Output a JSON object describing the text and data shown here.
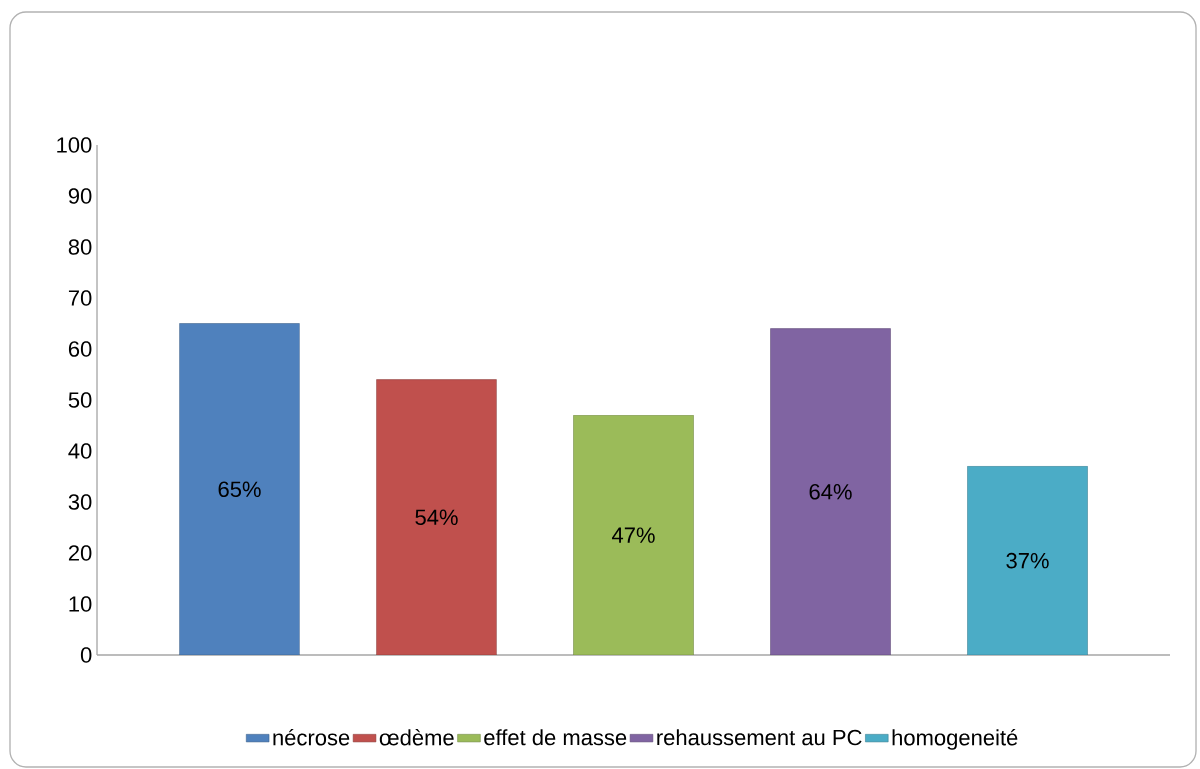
{
  "chart_data": {
    "type": "bar",
    "categories": [
      null
    ],
    "series": [
      {
        "name": "nécrose",
        "color": "#4f81bd",
        "values": [
          65
        ],
        "value_labels": [
          "65%"
        ]
      },
      {
        "name": "œdème",
        "color": "#c0504d",
        "values": [
          54
        ],
        "value_labels": [
          "54%"
        ]
      },
      {
        "name": "effet de masse",
        "color": "#9bbb59",
        "values": [
          47
        ],
        "value_labels": [
          "47%"
        ]
      },
      {
        "name": "rehaussement au PC",
        "color": "#8064a2",
        "values": [
          64
        ],
        "value_labels": [
          "64%"
        ]
      },
      {
        "name": "homogeneité",
        "color": "#4bacc6",
        "values": [
          37
        ],
        "value_labels": [
          "37%"
        ]
      }
    ],
    "ylim": [
      0,
      100
    ],
    "yticks": [
      0,
      10,
      20,
      30,
      40,
      50,
      60,
      70,
      80,
      90,
      100
    ],
    "grid": false,
    "legend": "bottom"
  }
}
